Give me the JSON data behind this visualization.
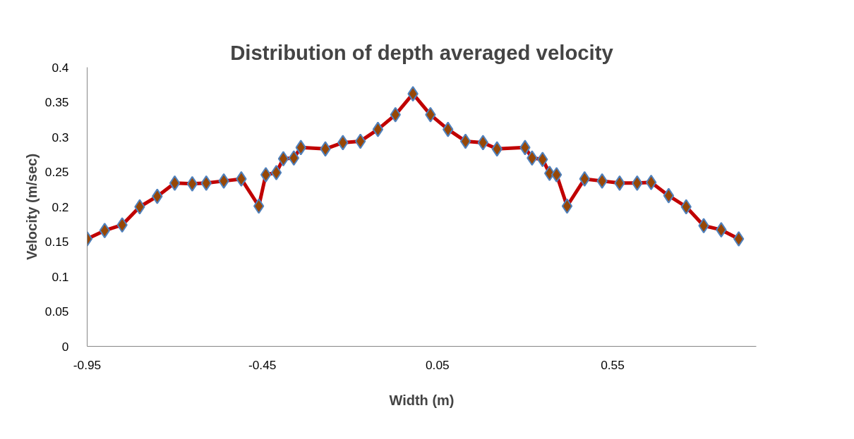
{
  "chart_data": {
    "type": "line",
    "title": "Distribution of depth averaged velocity",
    "xlabel": "Width (m)",
    "ylabel": "Velocity (m/sec)",
    "x": [
      -0.95,
      -0.9,
      -0.85,
      -0.8,
      -0.75,
      -0.7,
      -0.65,
      -0.61,
      -0.56,
      -0.51,
      -0.46,
      -0.44,
      -0.41,
      -0.39,
      -0.36,
      -0.34,
      -0.27,
      -0.22,
      -0.17,
      -0.12,
      -0.07,
      -0.02,
      0.03,
      0.08,
      0.13,
      0.18,
      0.22,
      0.3,
      0.32,
      0.35,
      0.37,
      0.39,
      0.42,
      0.47,
      0.52,
      0.57,
      0.62,
      0.66,
      0.71,
      0.76,
      0.81,
      0.86,
      0.91
    ],
    "series": [
      {
        "color": "#c00000",
        "values": [
          0.154,
          0.166,
          0.174,
          0.2,
          0.215,
          0.234,
          0.233,
          0.234,
          0.237,
          0.24,
          0.201,
          0.246,
          0.249,
          0.269,
          0.27,
          0.285,
          0.283,
          0.292,
          0.294,
          0.311,
          0.332,
          0.362,
          0.332,
          0.311,
          0.294,
          0.292,
          0.283,
          0.285,
          0.27,
          0.268,
          0.248,
          0.246,
          0.201,
          0.24,
          0.237,
          0.234,
          0.234,
          0.235,
          0.216,
          0.2,
          0.173,
          0.167,
          0.154
        ]
      }
    ],
    "marker": "diamond",
    "xlim": [
      -0.95,
      0.96
    ],
    "ylim": [
      0,
      0.4
    ],
    "xticks": [
      -0.95,
      -0.45,
      0.05,
      0.55
    ],
    "yticks": [
      0,
      {
        "value": 0.05,
        "label": "0.05"
      },
      {
        "value": 0.1,
        "label": "0.1"
      },
      {
        "value": 0.15,
        "label": "0.15"
      },
      {
        "value": 0.2,
        "label": "0.2"
      },
      {
        "value": 0.25,
        "label": "0.25"
      },
      {
        "value": 0.3,
        "label": "0.3"
      },
      {
        "value": 0.35,
        "label": "0.35"
      },
      {
        "value": 0.4,
        "label": "0.4"
      }
    ],
    "grid": false
  }
}
